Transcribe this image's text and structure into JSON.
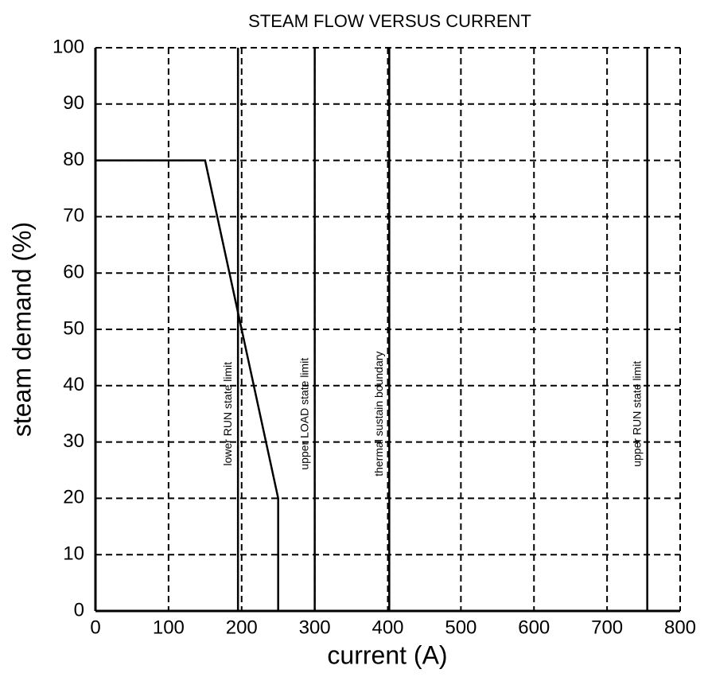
{
  "chart_data": {
    "type": "line",
    "title": "STEAM FLOW VERSUS CURRENT",
    "xlabel": "current (A)",
    "ylabel": "steam demand (%)",
    "x": [
      0,
      150,
      250,
      250
    ],
    "series": [
      {
        "name": "steam demand",
        "color": "#000000",
        "values": [
          80,
          80,
          20,
          0
        ]
      }
    ],
    "xlim": [
      0,
      800
    ],
    "xticks": [
      0,
      100,
      200,
      300,
      400,
      500,
      600,
      700,
      800
    ],
    "ylim": [
      0,
      100
    ],
    "yticks": [
      0,
      10,
      20,
      30,
      40,
      50,
      60,
      70,
      80,
      90,
      100
    ],
    "grid": true,
    "annotations": [
      {
        "x": 195,
        "label": "lower RUN state limit"
      },
      {
        "x": 300,
        "label": "upper LOAD state limit"
      },
      {
        "x": 402,
        "label": "thermal sustain boundary"
      },
      {
        "x": 755,
        "label": "upper RUN state limit"
      }
    ]
  }
}
